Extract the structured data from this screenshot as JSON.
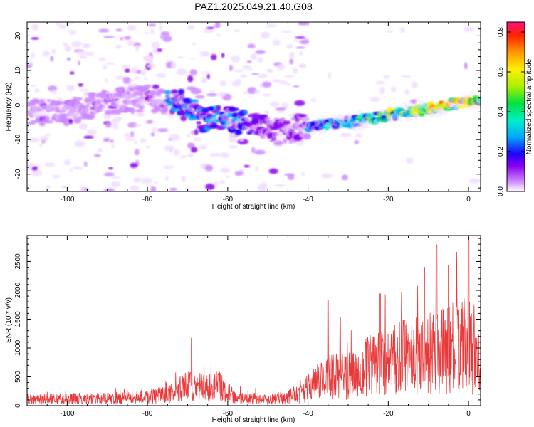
{
  "title": "PAZ1.2025.049.21.40.G08",
  "chart_data": [
    {
      "type": "heatmap",
      "xlabel": "Height of straight line (km)",
      "ylabel": "Frequency (Hz)",
      "xlim": [
        -110,
        3
      ],
      "ylim": [
        -25,
        24
      ],
      "xticks": [
        -100,
        -80,
        -60,
        -40,
        -20,
        0
      ],
      "yticks": [
        -20,
        -10,
        0,
        10,
        20
      ],
      "colorbar": {
        "label": "Normalized spectral amplitude",
        "range": [
          0.0,
          0.85
        ],
        "ticks": [
          0.0,
          0.2,
          0.4,
          0.6,
          0.8
        ]
      },
      "ridge": [
        {
          "x": -100,
          "y": -2
        },
        {
          "x": -90,
          "y": 1
        },
        {
          "x": -80,
          "y": 2
        },
        {
          "x": -72,
          "y": 1
        },
        {
          "x": -66,
          "y": -4
        },
        {
          "x": -60,
          "y": -4
        },
        {
          "x": -52,
          "y": -6
        },
        {
          "x": -46,
          "y": -8
        },
        {
          "x": -40,
          "y": -6
        },
        {
          "x": -30,
          "y": -5
        },
        {
          "x": -20,
          "y": -3
        },
        {
          "x": -10,
          "y": -1
        },
        {
          "x": 0,
          "y": 1
        },
        {
          "x": 3,
          "y": 2
        }
      ]
    },
    {
      "type": "line",
      "xlabel": "Height of straight line (km)",
      "ylabel": "SNR (10 * v/v)",
      "xlim": [
        -110,
        3
      ],
      "ylim": [
        0,
        2950
      ],
      "xticks": [
        -100,
        -80,
        -60,
        -40,
        -20,
        0
      ],
      "yticks": [
        0,
        500,
        1000,
        1500,
        2000,
        2500
      ],
      "series_color": "#e8393b",
      "envelope": [
        {
          "x": -110,
          "y": 150
        },
        {
          "x": -100,
          "y": 160
        },
        {
          "x": -90,
          "y": 170
        },
        {
          "x": -80,
          "y": 200
        },
        {
          "x": -75,
          "y": 260
        },
        {
          "x": -70,
          "y": 450
        },
        {
          "x": -65,
          "y": 420
        },
        {
          "x": -62,
          "y": 480
        },
        {
          "x": -58,
          "y": 180
        },
        {
          "x": -50,
          "y": 150
        },
        {
          "x": -45,
          "y": 200
        },
        {
          "x": -40,
          "y": 400
        },
        {
          "x": -35,
          "y": 700
        },
        {
          "x": -30,
          "y": 650
        },
        {
          "x": -25,
          "y": 900
        },
        {
          "x": -20,
          "y": 1000
        },
        {
          "x": -15,
          "y": 1150
        },
        {
          "x": -10,
          "y": 1250
        },
        {
          "x": -5,
          "y": 1300
        },
        {
          "x": 0,
          "y": 1400
        },
        {
          "x": 3,
          "y": 900
        }
      ],
      "peaks": [
        {
          "x": -69,
          "y": 1170
        },
        {
          "x": -35,
          "y": 1830
        },
        {
          "x": -32,
          "y": 1530
        },
        {
          "x": -22,
          "y": 1940
        },
        {
          "x": -11,
          "y": 2400
        },
        {
          "x": -8,
          "y": 2790
        },
        {
          "x": -5,
          "y": 2430
        },
        {
          "x": 0,
          "y": 2930
        }
      ]
    }
  ]
}
